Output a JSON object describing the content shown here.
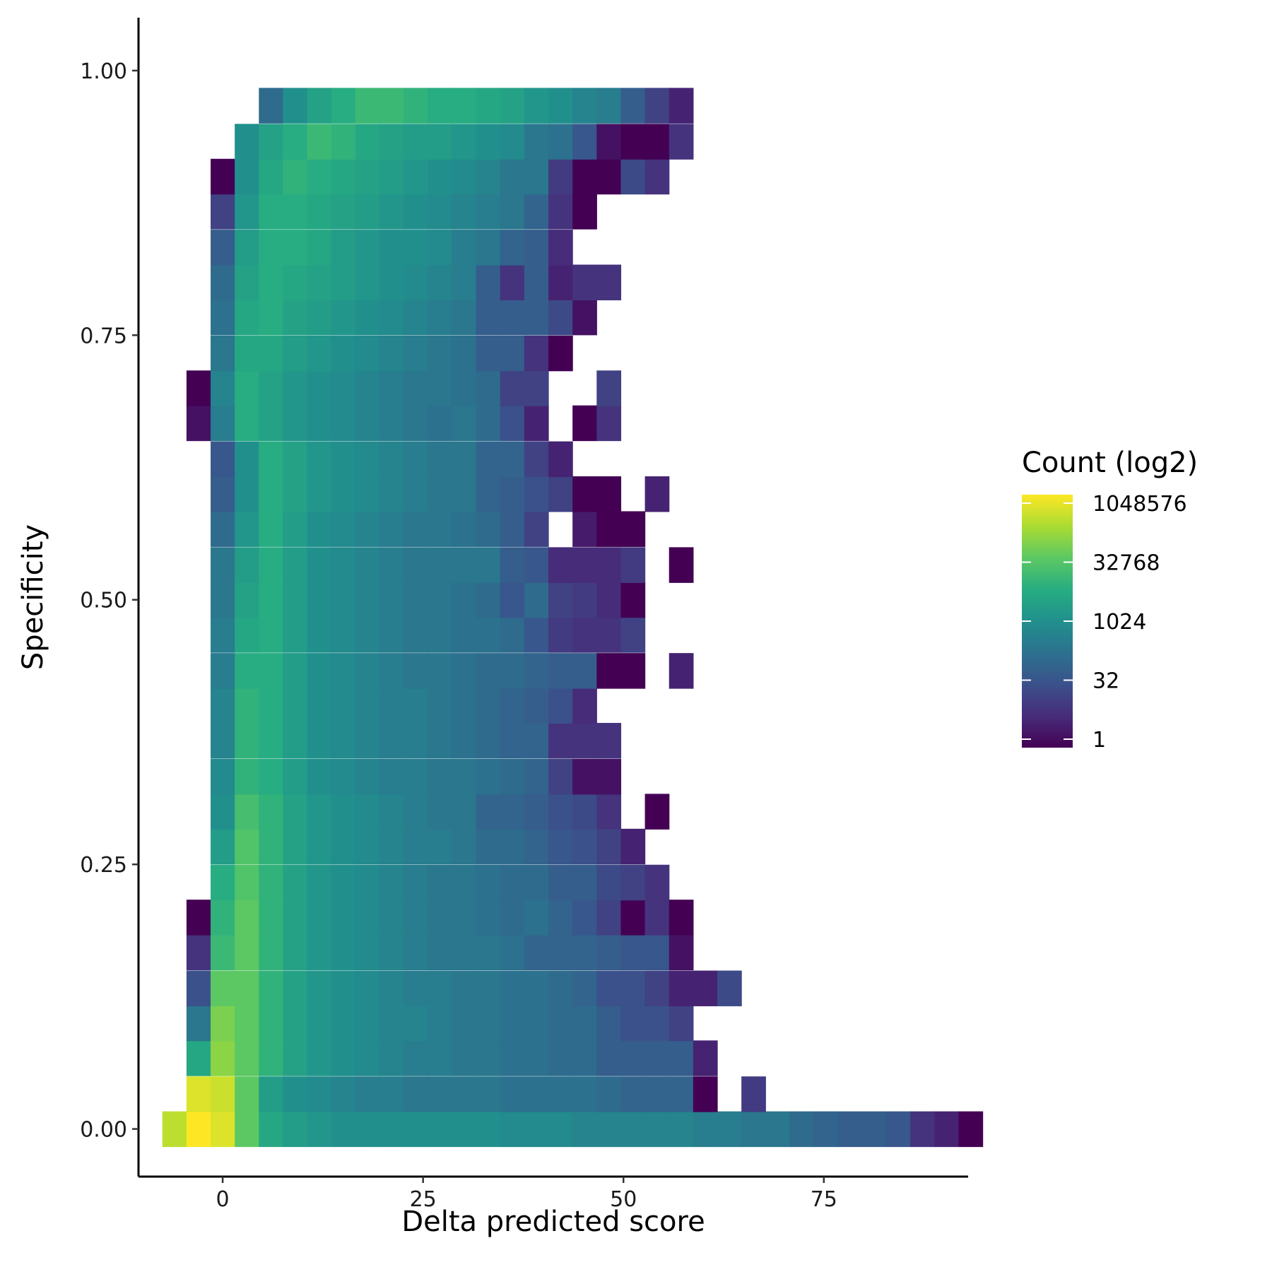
{
  "chart_data": {
    "type": "heatmap",
    "xlabel": "Delta predicted score",
    "ylabel": "Specificity",
    "xlim": [
      -10.5,
      93
    ],
    "ylim": [
      -0.045,
      1.05
    ],
    "x_ticks": [
      {
        "value": 0,
        "label": "0"
      },
      {
        "value": 25,
        "label": "25"
      },
      {
        "value": 50,
        "label": "50"
      },
      {
        "value": 75,
        "label": "75"
      }
    ],
    "y_ticks": [
      {
        "value": 0.0,
        "label": "0.00"
      },
      {
        "value": 0.25,
        "label": "0.25"
      },
      {
        "value": 0.5,
        "label": "0.50"
      },
      {
        "value": 0.75,
        "label": "0.75"
      },
      {
        "value": 1.0,
        "label": "1.00"
      }
    ],
    "bin_width_x": 3.01,
    "bin_height_y": 0.0333,
    "bin_x_start": -6.02,
    "bin_y_start": -0.0167,
    "grid": false,
    "color_scale": {
      "name": "viridis",
      "transform": "log2",
      "colors": [
        "#440154",
        "#472c7a",
        "#3b518b",
        "#2c718e",
        "#21908d",
        "#27ad81",
        "#5cc863",
        "#aadc32",
        "#fde725"
      ]
    },
    "legend": {
      "title": "Count (log2)",
      "placement": "right",
      "entries": [
        {
          "label": "1048576",
          "log2": 20
        },
        {
          "label": "32768",
          "log2": 15
        },
        {
          "label": "1024",
          "log2": 10
        },
        {
          "label": "32",
          "log2": 5
        },
        {
          "label": "1",
          "log2": 0
        }
      ]
    },
    "rows": [
      {
        "y": 0.0,
        "start": -6.02,
        "log2": [
          18,
          20,
          19,
          15,
          12,
          11,
          10.5,
          10,
          10,
          10,
          10,
          10,
          10,
          10,
          9.5,
          9.5,
          9.5,
          9,
          9,
          9,
          9,
          9,
          8.5,
          8.5,
          8,
          8,
          7,
          6.5,
          6,
          6,
          5.5,
          3,
          2,
          0
        ]
      },
      {
        "y": 0.033,
        "start": -6.02,
        "log2": [
          null,
          19,
          18.5,
          15,
          11,
          10,
          9.5,
          9,
          8.5,
          8.5,
          8,
          8,
          8,
          8,
          7.5,
          7.5,
          7.5,
          7.5,
          7,
          6.5,
          6.5,
          6.5,
          0,
          null,
          3.5
        ]
      },
      {
        "y": 0.067,
        "start": -3.01,
        "log2": [
          12,
          16.5,
          15,
          13,
          11.5,
          10.5,
          10,
          9.5,
          9,
          8.5,
          8.5,
          8,
          8,
          7.5,
          7.5,
          7,
          7,
          6,
          6,
          6,
          6,
          2
        ]
      },
      {
        "y": 0.1,
        "start": -3.01,
        "log2": [
          8,
          16,
          15,
          13,
          11.5,
          10.5,
          10,
          9.5,
          9,
          9,
          8.5,
          8,
          8,
          7.5,
          7.5,
          7,
          7,
          6,
          5,
          5,
          4
        ]
      },
      {
        "y": 0.133,
        "start": -3.01,
        "log2": [
          5,
          15,
          15,
          13,
          11.5,
          10.5,
          10,
          9.5,
          9,
          8.5,
          8.5,
          8,
          8,
          7.5,
          7.5,
          7,
          6.5,
          5,
          5,
          4,
          2,
          2,
          4.5
        ]
      },
      {
        "y": 0.167,
        "start": -3.01,
        "log2": [
          3,
          13.5,
          15,
          13,
          11.5,
          10.5,
          10,
          9.5,
          9,
          8.5,
          8,
          8,
          8,
          7.5,
          6.5,
          6.5,
          6.5,
          6,
          5.5,
          5.5,
          1
        ]
      },
      {
        "y": 0.2,
        "start": -3.01,
        "log2": [
          0,
          13,
          15,
          13,
          11.5,
          10.5,
          10,
          9.5,
          9,
          8.5,
          8,
          8,
          7.5,
          7,
          7.5,
          6.5,
          5.5,
          4,
          0,
          3,
          0
        ]
      },
      {
        "y": 0.233,
        "start": 0,
        "log2": [
          12.5,
          14.5,
          13,
          11.5,
          10.5,
          10,
          9.5,
          9,
          8.5,
          8,
          8,
          7.5,
          7,
          7,
          6,
          6,
          4.5,
          4,
          3
        ]
      },
      {
        "y": 0.267,
        "start": 0,
        "log2": [
          11,
          14.5,
          13,
          11.5,
          10.5,
          10,
          9.5,
          9,
          8.5,
          8.5,
          8,
          7,
          7,
          6.5,
          5.5,
          5,
          4,
          2
        ]
      },
      {
        "y": 0.3,
        "start": 0,
        "log2": [
          10,
          14,
          13,
          11.5,
          10.5,
          10,
          9.5,
          9,
          8.5,
          8,
          8,
          6.5,
          6.5,
          6,
          5,
          4.5,
          3,
          null,
          0
        ]
      },
      {
        "y": 0.333,
        "start": 0,
        "log2": [
          9.5,
          13,
          12.5,
          11,
          10,
          9.5,
          9,
          8.5,
          8.5,
          8,
          8,
          7.5,
          7,
          6.5,
          4,
          1,
          1
        ]
      },
      {
        "y": 0.367,
        "start": 0,
        "log2": [
          9,
          13,
          12.5,
          11,
          10,
          9.5,
          9,
          8.5,
          8.5,
          8,
          7.5,
          7,
          6.5,
          6.5,
          3,
          3,
          3
        ]
      },
      {
        "y": 0.4,
        "start": 0,
        "log2": [
          9,
          13,
          12.5,
          11,
          10,
          9.5,
          9,
          8.5,
          8.5,
          8,
          7.5,
          7,
          6.5,
          6,
          5,
          2.5
        ]
      },
      {
        "y": 0.433,
        "start": 0,
        "log2": [
          8.5,
          12.5,
          12.5,
          11,
          10,
          9.5,
          9,
          8.5,
          8,
          8,
          7.5,
          7,
          7,
          6.5,
          6,
          6,
          0,
          0,
          null,
          2
        ]
      },
      {
        "y": 0.467,
        "start": 0,
        "log2": [
          8.5,
          12,
          12.5,
          11,
          10,
          9.5,
          9,
          8.5,
          8,
          8,
          7.5,
          7.5,
          7,
          5.5,
          3.5,
          3,
          3,
          4
        ]
      },
      {
        "y": 0.5,
        "start": 0,
        "log2": [
          8,
          11.5,
          12.5,
          11,
          10,
          9.5,
          9,
          8.5,
          8,
          8,
          7.5,
          7,
          5.5,
          7,
          4,
          3.5,
          2.5,
          0
        ]
      },
      {
        "y": 0.533,
        "start": 0,
        "log2": [
          8,
          11,
          12.5,
          11,
          10,
          9.5,
          9,
          8.5,
          8,
          8,
          8,
          8,
          6,
          5.5,
          2.5,
          2.5,
          2.5,
          3.5,
          null,
          0
        ]
      },
      {
        "y": 0.567,
        "start": 0,
        "log2": [
          7,
          10.5,
          12.5,
          11,
          10,
          9.5,
          9,
          8.5,
          8,
          8,
          7.5,
          7,
          6,
          4,
          null,
          1.5,
          0,
          0
        ]
      },
      {
        "y": 0.6,
        "start": 0,
        "log2": [
          6,
          10,
          12.5,
          11.5,
          10.5,
          10,
          9.5,
          9,
          8.5,
          8,
          8,
          6.5,
          6,
          5,
          4,
          0,
          0,
          null,
          2
        ]
      },
      {
        "y": 0.633,
        "start": 0,
        "log2": [
          5.5,
          10,
          12.5,
          11.5,
          10.5,
          10,
          9.5,
          9,
          8.5,
          8,
          8,
          6.5,
          6.5,
          4,
          2
        ]
      },
      {
        "y": 0.667,
        "start": -3.01,
        "log2": [
          1,
          8.5,
          12.5,
          11.5,
          10.5,
          10,
          9.5,
          9,
          8.5,
          8,
          7.5,
          8,
          7,
          5,
          2,
          null,
          0,
          3
        ]
      },
      {
        "y": 0.7,
        "start": -3.01,
        "log2": [
          0,
          9,
          12.5,
          11.5,
          10.5,
          10,
          9.5,
          9,
          8.5,
          8,
          8,
          7.5,
          7,
          4,
          4,
          null,
          null,
          4
        ]
      },
      {
        "y": 0.733,
        "start": 0,
        "log2": [
          8,
          12,
          12,
          11,
          10.5,
          10,
          9.5,
          9,
          8.5,
          8,
          7.5,
          6,
          6,
          3,
          0
        ]
      },
      {
        "y": 0.767,
        "start": 0,
        "log2": [
          7.5,
          12,
          12.5,
          11.5,
          11,
          10.5,
          10,
          9.5,
          9,
          8.5,
          8,
          6,
          6,
          6,
          4.5,
          1
        ]
      },
      {
        "y": 0.8,
        "start": 0,
        "log2": [
          7,
          11.5,
          12.5,
          12,
          11.5,
          11,
          10.5,
          10,
          9.5,
          9,
          8.5,
          6,
          3,
          6,
          2,
          3,
          3
        ]
      },
      {
        "y": 0.833,
        "start": 0,
        "log2": [
          6,
          11,
          12.5,
          12.5,
          12,
          11,
          10.5,
          10,
          10,
          9.5,
          8.5,
          8,
          6.5,
          6,
          2.5
        ]
      },
      {
        "y": 0.867,
        "start": 0,
        "log2": [
          4,
          10.5,
          12.5,
          12.5,
          12,
          11.5,
          11,
          10.5,
          10,
          9.5,
          9,
          8.5,
          8,
          6.5,
          3,
          0
        ]
      },
      {
        "y": 0.9,
        "start": 0,
        "log2": [
          0,
          10,
          12,
          13,
          12.5,
          12,
          11.5,
          11,
          10.5,
          10,
          9.5,
          9,
          8,
          8,
          3.5,
          0,
          0,
          4.5,
          3
        ]
      },
      {
        "y": 0.933,
        "start": 3.01,
        "log2": [
          10,
          11.5,
          12.5,
          13.5,
          13,
          12,
          11.5,
          11,
          11,
          10.5,
          10,
          9.5,
          8,
          7.5,
          5.5,
          1,
          0,
          0,
          3
        ]
      },
      {
        "y": 0.967,
        "start": 6.02,
        "log2": [
          7,
          10,
          11.5,
          12.5,
          13.5,
          13.5,
          13,
          12.5,
          12.5,
          12,
          11.5,
          10.5,
          10,
          9,
          8.5,
          6,
          4,
          2
        ]
      }
    ]
  }
}
